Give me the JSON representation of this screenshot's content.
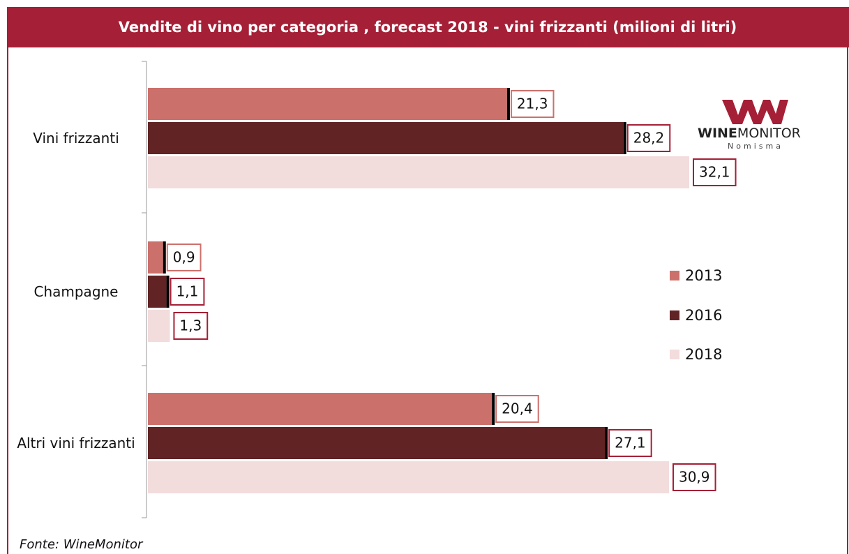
{
  "chart_data": {
    "type": "bar",
    "orientation": "horizontal",
    "title": "Vendite di vino per categoria , forecast 2018 - vini frizzanti (milioni di litri)",
    "categories": [
      "Vini frizzanti",
      "Champagne",
      "Altri vini frizzanti"
    ],
    "series": [
      {
        "name": "2013",
        "color": "#cc706b",
        "values": [
          21.3,
          0.9,
          20.4
        ],
        "value_labels": [
          "21,3",
          "0,9",
          "20,4"
        ]
      },
      {
        "name": "2016",
        "color": "#612324",
        "values": [
          28.2,
          1.1,
          27.1
        ],
        "value_labels": [
          "28,2",
          "1,1",
          "27,1"
        ]
      },
      {
        "name": "2018",
        "color": "#f3dcdc",
        "values": [
          32.1,
          1.3,
          30.9
        ],
        "value_labels": [
          "32,1",
          "1,3",
          "30,9"
        ]
      }
    ],
    "legend": "right",
    "source": "Fonte: WineMonitor",
    "logo": {
      "brand_bold": "WINE",
      "brand": "MONITOR",
      "sub": "Nomisma"
    }
  }
}
